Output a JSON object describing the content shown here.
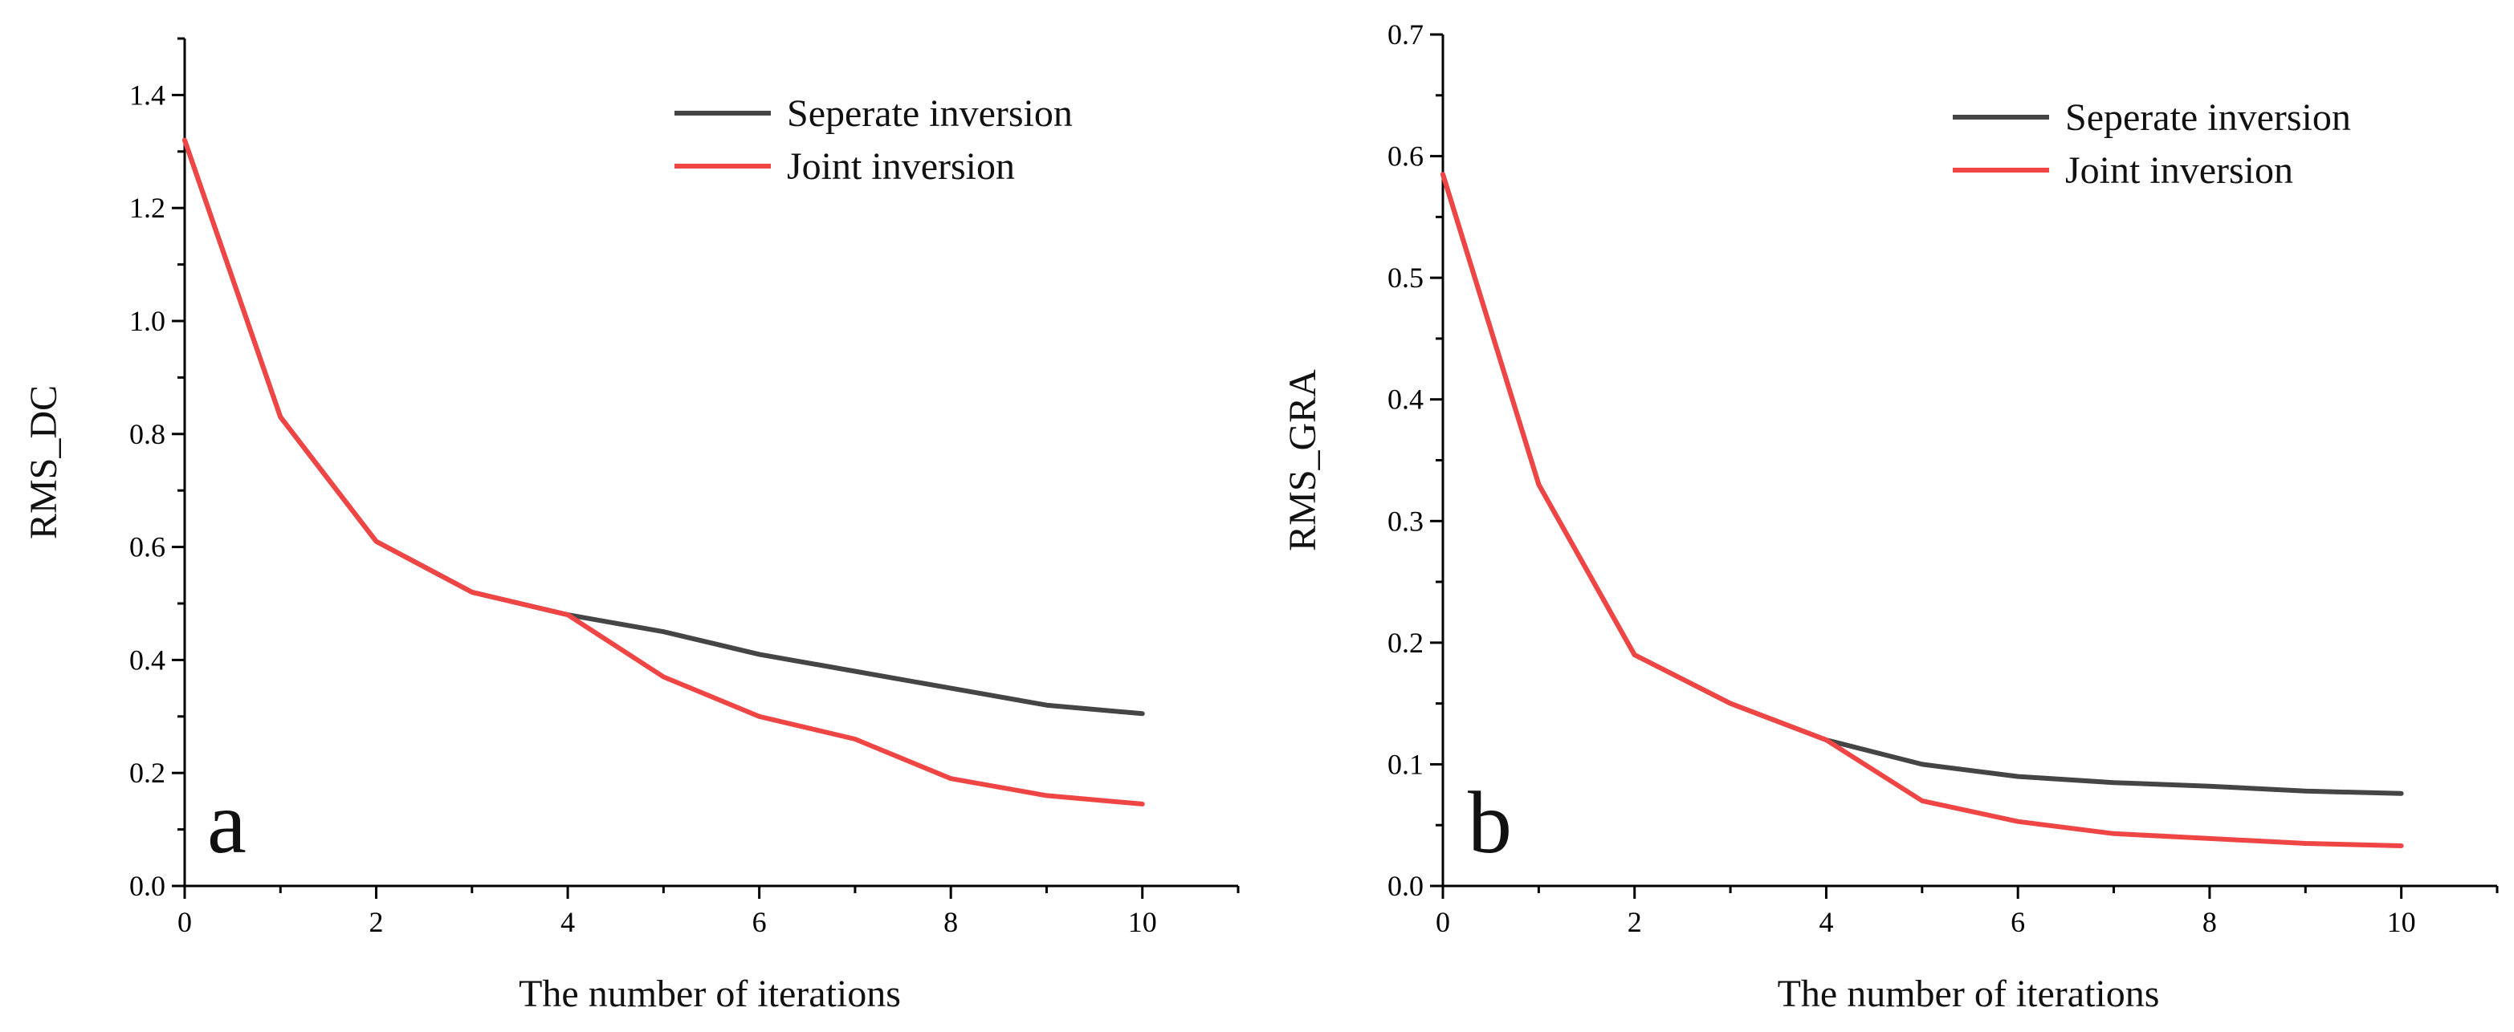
{
  "chart_data": [
    {
      "type": "line",
      "panel_label": "a",
      "xlabel": "The number of iterations",
      "ylabel": "RMS_DC",
      "xlim": [
        0,
        11
      ],
      "ylim": [
        0,
        1.5
      ],
      "xticks": [
        0,
        2,
        4,
        6,
        8,
        10
      ],
      "xtick_labels": [
        "0",
        "2",
        "4",
        "6",
        "8",
        "10"
      ],
      "yticks": [
        0,
        0.2,
        0.4,
        0.6,
        0.8,
        1.0,
        1.2,
        1.4
      ],
      "ytick_labels": [
        "0.0",
        "0.2",
        "0.4",
        "0.6",
        "0.8",
        "1.0",
        "1.2",
        "1.4"
      ],
      "legend_position": "top-right",
      "x": [
        0,
        1,
        2,
        3,
        4,
        5,
        6,
        7,
        8,
        9,
        10
      ],
      "series": [
        {
          "name": "Seperate inversion",
          "color": "#454545",
          "values": [
            1.32,
            0.83,
            0.61,
            0.52,
            0.48,
            0.45,
            0.41,
            0.38,
            0.35,
            0.32,
            0.305
          ]
        },
        {
          "name": "Joint inversion",
          "color": "#f04545",
          "values": [
            1.32,
            0.83,
            0.61,
            0.52,
            0.48,
            0.37,
            0.3,
            0.26,
            0.19,
            0.16,
            0.145
          ]
        }
      ]
    },
    {
      "type": "line",
      "panel_label": "b",
      "xlabel": "The number of iterations",
      "ylabel": "RMS_GRA",
      "xlim": [
        0,
        11
      ],
      "ylim": [
        0,
        0.7
      ],
      "xticks": [
        0,
        2,
        4,
        6,
        8,
        10
      ],
      "xtick_labels": [
        "0",
        "2",
        "4",
        "6",
        "8",
        "10"
      ],
      "yticks": [
        0,
        0.1,
        0.2,
        0.3,
        0.4,
        0.5,
        0.6,
        0.7
      ],
      "ytick_labels": [
        "0.0",
        "0.1",
        "0.2",
        "0.3",
        "0.4",
        "0.5",
        "0.6",
        "0.7"
      ],
      "legend_position": "top-right",
      "x": [
        0,
        1,
        2,
        3,
        4,
        5,
        6,
        7,
        8,
        9,
        10
      ],
      "series": [
        {
          "name": "Seperate inversion",
          "color": "#454545",
          "values": [
            0.585,
            0.33,
            0.19,
            0.15,
            0.12,
            0.1,
            0.09,
            0.085,
            0.082,
            0.078,
            0.076
          ]
        },
        {
          "name": "Joint inversion",
          "color": "#f04545",
          "values": [
            0.585,
            0.33,
            0.19,
            0.15,
            0.12,
            0.07,
            0.053,
            0.043,
            0.039,
            0.035,
            0.033
          ]
        }
      ]
    }
  ]
}
